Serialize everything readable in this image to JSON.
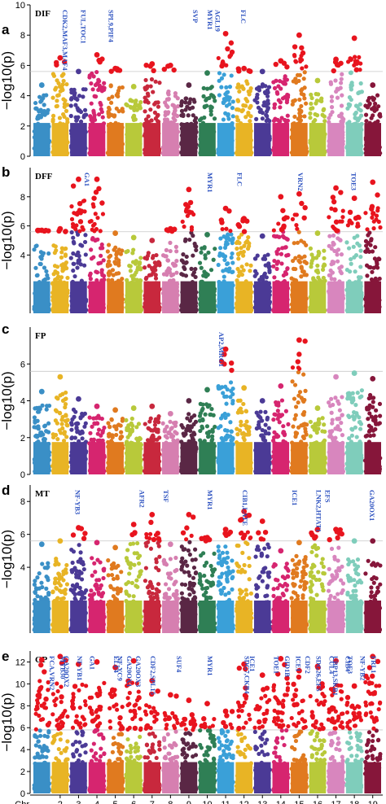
{
  "chart_data": [
    {
      "type": "scatter",
      "panel": "a",
      "trait": "DIF",
      "ylabel": "−log10(p)",
      "ylim": [
        0,
        10
      ],
      "yticks": [
        0,
        2,
        4,
        6,
        8,
        10
      ],
      "threshold": 5.6,
      "max_peaks": [
        4.7,
        6.5,
        5.6,
        6.7,
        5.8,
        4.6,
        6.1,
        6.0,
        4.7,
        5.5,
        8.1,
        5.8,
        5.6,
        6.3,
        8.0,
        5.0,
        6.4,
        7.8,
        4.7,
        6.3
      ],
      "genes": [
        {
          "label": "CDK2,MAF3,MAF4",
          "chr": 2.5
        },
        {
          "label": "FUL,TOC1",
          "chr": 3.5
        },
        {
          "label": "SPL9,PIF4",
          "chr": 5.0
        },
        {
          "label": "SVP",
          "chr": 9.6
        },
        {
          "label": "MYR1",
          "chr": 10.4
        },
        {
          "label": "AGL19",
          "chr": 10.8
        },
        {
          "label": "FLC",
          "chr": 12.2
        }
      ]
    },
    {
      "type": "scatter",
      "panel": "b",
      "trait": "DFF",
      "ylabel": "−log10(p)",
      "ylim": [
        0,
        10
      ],
      "yticks": [
        4,
        6,
        8
      ],
      "threshold": 5.6,
      "max_peaks": [
        5.7,
        5.8,
        9.2,
        9.2,
        5.5,
        5.2,
        5.0,
        5.8,
        8.5,
        5.4,
        7.2,
        6.5,
        5.3,
        8.0,
        8.2,
        5.5,
        8.6,
        7.9,
        9.0,
        9.0
      ],
      "genes": [
        {
          "label": "GA1",
          "chr": 3.7
        },
        {
          "label": "MYR1",
          "chr": 10.4
        },
        {
          "label": "FLC",
          "chr": 12.0
        },
        {
          "label": "VRN2",
          "chr": 15.3
        },
        {
          "label": "TOE3",
          "chr": 18.2
        }
      ]
    },
    {
      "type": "scatter",
      "panel": "c",
      "trait": "FP",
      "ylabel": "−log10(p)",
      "ylim": [
        0,
        8
      ],
      "yticks": [
        0,
        2,
        4,
        6
      ],
      "threshold": 5.6,
      "max_peaks": [
        4.5,
        5.3,
        4.1,
        3.7,
        3.5,
        3.6,
        3.7,
        3.3,
        4.0,
        4.6,
        6.8,
        4.7,
        4.0,
        4.8,
        7.3,
        3.6,
        5.3,
        5.5,
        5.2,
        4.8
      ],
      "genes": [
        {
          "label": "AP2,MRG1",
          "chr": 11.0
        }
      ]
    },
    {
      "type": "scatter",
      "panel": "d",
      "trait": "MT",
      "ylabel": "−log10(p)",
      "ylim": [
        0,
        9
      ],
      "yticks": [
        4,
        6,
        8
      ],
      "threshold": 5.6,
      "max_peaks": [
        5.4,
        5.6,
        6.4,
        5.5,
        5.2,
        6.6,
        7.2,
        5.4,
        7.2,
        5.8,
        6.3,
        7.4,
        6.8,
        5.0,
        5.5,
        6.3,
        6.3,
        5.6,
        5.6,
        7.6
      ],
      "genes": [
        {
          "label": "NF-YB3",
          "chr": 3.2
        },
        {
          "label": "AFR2",
          "chr": 6.7
        },
        {
          "label": "TSF",
          "chr": 8.0
        },
        {
          "label": "MYR1",
          "chr": 10.4
        },
        {
          "label": "CIB1,LATE",
          "chr": 12.3
        },
        {
          "label": "ICE1",
          "chr": 15.0
        },
        {
          "label": "LNK2,HTAT1",
          "chr": 16.3
        },
        {
          "label": "EFS",
          "chr": 16.8
        },
        {
          "label": "GA20OX1",
          "chr": 19.2
        }
      ]
    },
    {
      "type": "scatter",
      "panel": "e",
      "trait": "GP",
      "ylabel": "−log10(p)",
      "ylim": [
        0,
        13
      ],
      "yticks": [
        0,
        2,
        4,
        6,
        8,
        10,
        12
      ],
      "threshold": 5.8,
      "max_peaks": [
        12.2,
        12.5,
        11.8,
        12.0,
        11.5,
        12.1,
        10.3,
        9.0,
        8.5,
        8.2,
        7.5,
        11.8,
        10.8,
        12.3,
        11.2,
        11.6,
        12.1,
        9.8,
        12.5
      ],
      "genes": [
        {
          "label": "MYB30",
          "chr": 2.4
        },
        {
          "label": "FCA,VRN2",
          "chr": 1.8
        },
        {
          "label": "GA20OX2",
          "chr": 2.6
        },
        {
          "label": "NF-YB1",
          "chr": 3.3
        },
        {
          "label": "GA1",
          "chr": 4.0
        },
        {
          "label": "NF-YC9",
          "chr": 5.5
        },
        {
          "label": "ELF4",
          "chr": 5.3
        },
        {
          "label": "GA20OX1",
          "chr": 6.0
        },
        {
          "label": "GA20OX3",
          "chr": 6.5
        },
        {
          "label": "CDF2,SPL15",
          "chr": 7.3
        },
        {
          "label": "SUF4",
          "chr": 8.7
        },
        {
          "label": "MYR1",
          "chr": 10.4
        },
        {
          "label": "SDG7,CKB4",
          "chr": 12.4
        },
        {
          "label": "ICE1",
          "chr": 12.7
        },
        {
          "label": "TOE1",
          "chr": 14.0
        },
        {
          "label": "GID1B",
          "chr": 14.6
        },
        {
          "label": "ICE1",
          "chr": 15.2
        },
        {
          "label": "CDF2",
          "chr": 15.7
        },
        {
          "label": "SDG26,EFS",
          "chr": 16.3
        },
        {
          "label": "UBP13,SKB1",
          "chr": 17.2
        },
        {
          "label": "CUL4",
          "chr": 17.0
        },
        {
          "label": "TOE3",
          "chr": 18.0
        },
        {
          "label": "CIB4",
          "chr": 17.9
        },
        {
          "label": "NF-YB2",
          "chr": 18.7
        },
        {
          "label": "FRL1",
          "chr": 19.3
        }
      ]
    }
  ],
  "x_axis": {
    "chr_label": "Chr",
    "chromosomes": [
      "2",
      "3",
      "4",
      "5",
      "6",
      "7",
      "8",
      "9",
      "10",
      "11",
      "12",
      "13",
      "14",
      "15",
      "16",
      "17",
      "18",
      "19"
    ]
  },
  "chromosome_colors": [
    "#3a8fc6",
    "#e8b425",
    "#4b3a96",
    "#d6256f",
    "#e07a1f",
    "#b8c93a",
    "#c8283d",
    "#d67fb0",
    "#5a2745",
    "#2f7f55",
    "#3aa0d8",
    "#e8b425",
    "#4b3a96",
    "#d6256f",
    "#e07a1f",
    "#b8c93a",
    "#d886be",
    "#7fcdbb",
    "#86163a"
  ],
  "point_colors": {
    "significant": "#e8141e",
    "threshold_line": "#c8c8c8"
  }
}
